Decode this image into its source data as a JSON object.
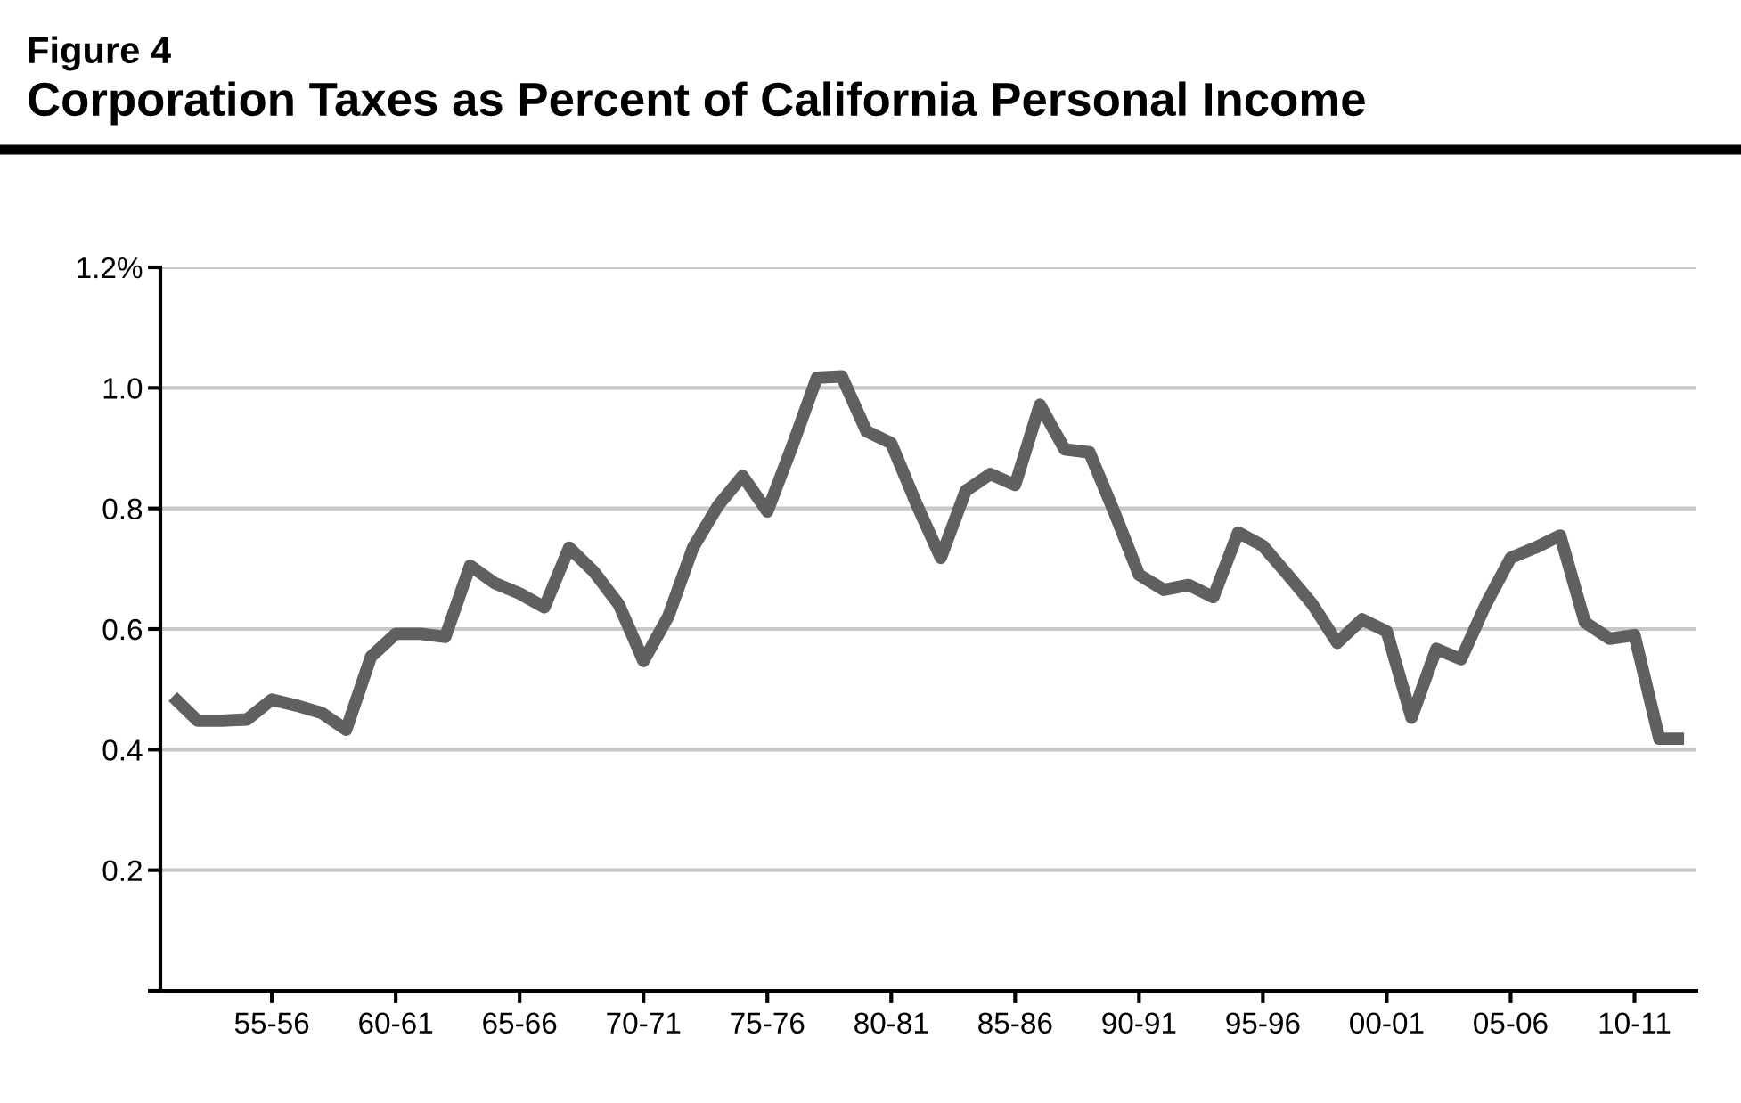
{
  "chart_data": {
    "type": "line",
    "subtitle": "Figure 4",
    "title": "Corporation Taxes as Percent of California Personal Income",
    "categories": [
      null,
      null,
      null,
      null,
      "55-56",
      null,
      null,
      null,
      null,
      "60-61",
      null,
      null,
      null,
      null,
      "65-66",
      null,
      null,
      null,
      null,
      "70-71",
      null,
      null,
      null,
      null,
      "75-76",
      null,
      null,
      null,
      null,
      "80-81",
      null,
      null,
      null,
      null,
      "85-86",
      null,
      null,
      null,
      null,
      "90-91",
      null,
      null,
      null,
      null,
      "95-96",
      null,
      null,
      null,
      null,
      "00-01",
      null,
      null,
      null,
      null,
      "05-06",
      null,
      null,
      null,
      null,
      "10-11",
      null,
      null
    ],
    "series": [
      {
        "color": "#5f6062",
        "values": [
          0.488,
          0.448,
          0.448,
          0.45,
          0.483,
          0.473,
          0.461,
          0.433,
          0.554,
          0.592,
          0.592,
          0.587,
          0.705,
          0.676,
          0.659,
          0.636,
          0.735,
          0.695,
          0.641,
          0.547,
          0.621,
          0.735,
          0.804,
          0.854,
          0.795,
          0.903,
          1.017,
          1.019,
          0.928,
          0.908,
          0.809,
          0.718,
          0.829,
          0.857,
          0.839,
          0.972,
          0.898,
          0.893,
          0.794,
          0.69,
          0.665,
          0.673,
          0.653,
          0.76,
          0.738,
          0.69,
          0.641,
          0.577,
          0.616,
          0.596,
          0.453,
          0.567,
          0.55,
          0.641,
          0.718,
          0.735,
          0.755,
          0.611,
          0.584,
          0.59,
          0.418,
          0.418
        ]
      }
    ],
    "ylim": [
      0,
      1.2
    ],
    "yticks": [
      {
        "value": 0,
        "label": null
      },
      {
        "value": 0.2,
        "label": "0.2"
      },
      {
        "value": 0.4,
        "label": "0.4"
      },
      {
        "value": 0.6,
        "label": "0.6"
      },
      {
        "value": 0.8,
        "label": "0.8"
      },
      {
        "value": 1.0,
        "label": "1.0"
      },
      {
        "value": 1.2,
        "label": "1.2%"
      }
    ],
    "grid": "y",
    "legend": false,
    "marker": "none",
    "line_style": "solid"
  }
}
